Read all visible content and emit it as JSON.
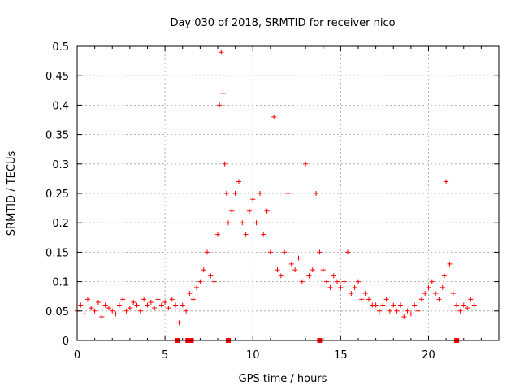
{
  "chart_data": {
    "type": "scatter",
    "title": "Day 030 of 2018, SRMTID for receiver nico",
    "xlabel": "GPS time / hours",
    "ylabel": "SRMTID / TECUs",
    "xlim": [
      0,
      24
    ],
    "ylim": [
      0,
      0.5
    ],
    "x_ticks": [
      "0",
      "5",
      "10",
      "15",
      "20"
    ],
    "y_ticks": [
      "0",
      "0.05",
      "0.1",
      "0.15",
      "0.2",
      "0.25",
      "0.3",
      "0.35",
      "0.4",
      "0.45",
      "0.5"
    ],
    "grid": true,
    "marker": "plus",
    "color": "#ff0000",
    "series": [
      {
        "x": [
          0.0,
          0.2,
          0.4,
          0.6,
          0.8,
          1.0,
          1.2,
          1.4,
          1.6,
          1.8,
          2.0,
          2.2,
          2.4,
          2.6,
          2.8,
          3.0,
          3.2,
          3.4,
          3.6,
          3.8,
          4.0,
          4.2,
          4.4,
          4.6,
          4.8,
          5.0,
          5.2,
          5.4,
          5.6,
          5.8,
          6.0,
          6.2,
          6.4,
          6.6,
          6.8,
          7.0,
          7.2,
          7.4,
          7.6,
          7.8,
          8.0,
          8.1,
          8.2,
          8.3,
          8.4,
          8.5,
          8.6,
          8.8,
          9.0,
          9.2,
          9.4,
          9.6,
          9.8,
          10.0,
          10.2,
          10.4,
          10.6,
          10.8,
          11.0,
          11.2,
          11.4,
          11.6,
          11.8,
          12.0,
          12.2,
          12.4,
          12.6,
          12.8,
          13.0,
          13.2,
          13.4,
          13.6,
          13.8,
          14.0,
          14.2,
          14.4,
          14.6,
          14.8,
          15.0,
          15.2,
          15.4,
          15.6,
          15.8,
          16.0,
          16.2,
          16.4,
          16.6,
          16.8,
          17.0,
          17.2,
          17.4,
          17.6,
          17.8,
          18.0,
          18.2,
          18.4,
          18.6,
          18.8,
          19.0,
          19.2,
          19.4,
          19.6,
          19.8,
          20.0,
          20.2,
          20.4,
          20.6,
          20.8,
          20.9,
          21.0,
          21.2,
          21.4,
          21.6,
          21.8,
          22.0,
          22.2,
          22.4,
          22.6
        ],
        "y": [
          0.05,
          0.06,
          0.045,
          0.07,
          0.055,
          0.05,
          0.065,
          0.04,
          0.06,
          0.055,
          0.05,
          0.045,
          0.06,
          0.07,
          0.05,
          0.055,
          0.065,
          0.06,
          0.05,
          0.07,
          0.06,
          0.065,
          0.055,
          0.07,
          0.06,
          0.065,
          0.055,
          0.07,
          0.06,
          0.03,
          0.06,
          0.05,
          0.08,
          0.07,
          0.09,
          0.1,
          0.12,
          0.15,
          0.11,
          0.1,
          0.18,
          0.4,
          0.49,
          0.42,
          0.3,
          0.25,
          0.2,
          0.22,
          0.25,
          0.27,
          0.2,
          0.18,
          0.22,
          0.24,
          0.2,
          0.25,
          0.18,
          0.22,
          0.15,
          0.38,
          0.12,
          0.11,
          0.15,
          0.25,
          0.13,
          0.12,
          0.14,
          0.1,
          0.3,
          0.11,
          0.12,
          0.25,
          0.15,
          0.12,
          0.1,
          0.09,
          0.11,
          0.1,
          0.09,
          0.1,
          0.15,
          0.08,
          0.09,
          0.1,
          0.07,
          0.08,
          0.07,
          0.06,
          0.06,
          0.05,
          0.06,
          0.07,
          0.05,
          0.06,
          0.05,
          0.06,
          0.04,
          0.05,
          0.045,
          0.06,
          0.05,
          0.07,
          0.08,
          0.09,
          0.1,
          0.08,
          0.07,
          0.09,
          0.11,
          0.27,
          0.13,
          0.08,
          0.06,
          0.05,
          0.06,
          0.055,
          0.07,
          0.06
        ]
      }
    ],
    "zero_markers_x": [
      5.7,
      6.3,
      6.5,
      8.6,
      13.8,
      21.6
    ]
  }
}
